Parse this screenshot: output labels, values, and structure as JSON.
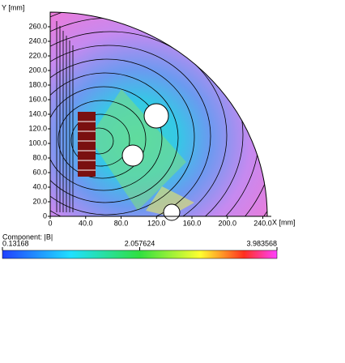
{
  "chart_data": {
    "type": "contour",
    "xlabel": "X [mm]",
    "ylabel": "Y [mm]",
    "xlim": [
      0,
      245
    ],
    "ylim": [
      0,
      280
    ],
    "xticks": [
      0,
      {
        "value": 40,
        "label": "40.0"
      },
      {
        "value": 80,
        "label": "80.0"
      },
      {
        "value": 120,
        "label": "120.0"
      },
      {
        "value": 160,
        "label": "160.0"
      },
      {
        "value": 200,
        "label": "200.0"
      },
      {
        "value": 240,
        "label": "240.0"
      }
    ],
    "yticks": [
      0,
      {
        "value": 20,
        "label": "20.0"
      },
      {
        "value": 40,
        "label": "40.0"
      },
      {
        "value": 60,
        "label": "60.0"
      },
      {
        "value": 80,
        "label": "80.0"
      },
      {
        "value": 100,
        "label": "100.0"
      },
      {
        "value": 120,
        "label": "120.0"
      },
      {
        "value": 140,
        "label": "140.0"
      },
      {
        "value": 160,
        "label": "160.0"
      },
      {
        "value": 180,
        "label": "180.0"
      },
      {
        "value": 200,
        "label": "200.0"
      },
      {
        "value": 220,
        "label": "220.0"
      },
      {
        "value": 240,
        "label": "240.0"
      },
      {
        "value": 260,
        "label": "260.0"
      }
    ],
    "colorbar": {
      "label": "Component: |B|",
      "ticks": [
        0.13168,
        2.057624,
        3.983568
      ]
    }
  }
}
